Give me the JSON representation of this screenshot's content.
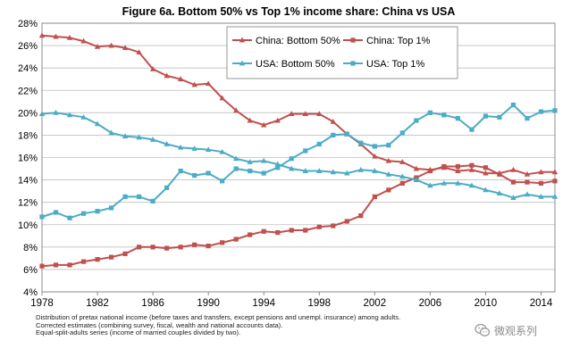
{
  "chart_data": {
    "type": "line",
    "title": "Figure 6a. Bottom 50% vs Top 1% income share: China vs USA",
    "xlabel": "",
    "ylabel": "",
    "xlim": [
      1978,
      2015
    ],
    "ylim": [
      4,
      28
    ],
    "x_ticks": [
      1978,
      1982,
      1986,
      1990,
      1994,
      1998,
      2002,
      2006,
      2010,
      2014
    ],
    "y_ticks": [
      4,
      6,
      8,
      10,
      12,
      14,
      16,
      18,
      20,
      22,
      24,
      26,
      28
    ],
    "y_tick_labels": [
      "4%",
      "6%",
      "8%",
      "10%",
      "12%",
      "14%",
      "16%",
      "18%",
      "20%",
      "22%",
      "24%",
      "26%",
      "28%"
    ],
    "grid": "horizontal",
    "legend_position": "top-center",
    "x": [
      1978,
      1979,
      1980,
      1981,
      1982,
      1983,
      1984,
      1985,
      1986,
      1987,
      1988,
      1989,
      1990,
      1991,
      1992,
      1993,
      1994,
      1995,
      1996,
      1997,
      1998,
      1999,
      2000,
      2001,
      2002,
      2003,
      2004,
      2005,
      2006,
      2007,
      2008,
      2009,
      2010,
      2011,
      2012,
      2013,
      2014,
      2015
    ],
    "series": [
      {
        "name": "China: Bottom 50%",
        "color": "#c0504d",
        "marker": "triangle",
        "values": [
          26.9,
          26.8,
          26.7,
          26.4,
          25.9,
          26.0,
          25.8,
          25.4,
          23.9,
          23.3,
          23.0,
          22.5,
          22.6,
          21.3,
          20.2,
          19.3,
          18.9,
          19.3,
          19.9,
          19.9,
          19.9,
          19.2,
          18.1,
          17.2,
          16.1,
          15.7,
          15.6,
          15.0,
          14.9,
          15.1,
          14.8,
          14.9,
          14.6,
          14.6,
          14.9,
          14.5,
          14.7,
          14.7
        ]
      },
      {
        "name": "China: Top 1%",
        "color": "#c0504d",
        "marker": "square",
        "values": [
          6.3,
          6.4,
          6.4,
          6.7,
          6.9,
          7.1,
          7.4,
          8.0,
          8.0,
          7.9,
          8.0,
          8.2,
          8.1,
          8.4,
          8.7,
          9.1,
          9.4,
          9.3,
          9.5,
          9.5,
          9.8,
          9.9,
          10.3,
          10.8,
          12.5,
          13.1,
          13.7,
          14.2,
          14.8,
          15.2,
          15.2,
          15.3,
          15.1,
          14.5,
          13.8,
          13.8,
          13.7,
          13.9
        ]
      },
      {
        "name": "USA: Bottom 50%",
        "color": "#4bacc6",
        "marker": "triangle",
        "values": [
          19.9,
          20.0,
          19.8,
          19.6,
          19.0,
          18.2,
          17.9,
          17.8,
          17.6,
          17.2,
          16.9,
          16.8,
          16.7,
          16.5,
          15.9,
          15.6,
          15.7,
          15.4,
          15.0,
          14.8,
          14.8,
          14.7,
          14.6,
          14.9,
          14.8,
          14.5,
          14.3,
          14.0,
          13.5,
          13.7,
          13.7,
          13.5,
          13.1,
          12.8,
          12.4,
          12.7,
          12.5,
          12.5
        ]
      },
      {
        "name": "USA: Top 1%",
        "color": "#4bacc6",
        "marker": "square",
        "values": [
          10.7,
          11.1,
          10.6,
          11.0,
          11.2,
          11.5,
          12.5,
          12.5,
          12.1,
          13.3,
          14.8,
          14.4,
          14.6,
          13.9,
          15.0,
          14.8,
          14.6,
          15.1,
          15.9,
          16.6,
          17.2,
          18.0,
          18.1,
          17.3,
          17.0,
          17.1,
          18.2,
          19.3,
          20.0,
          19.8,
          19.5,
          18.5,
          19.7,
          19.6,
          20.7,
          19.5,
          20.1,
          20.2
        ]
      }
    ]
  },
  "notes": {
    "line1": "Distribution of pretax national income (before taxes and transfers, except pensions and unempl. insurance) among adults.",
    "line2": "Corrected estimates (combining survey, fiscal, wealth and national accounts data).",
    "line3": "Equal-split-adults  series (income of married couples divided by two)."
  },
  "watermark": {
    "icon": "wechat-icon",
    "text": "微观系列"
  }
}
